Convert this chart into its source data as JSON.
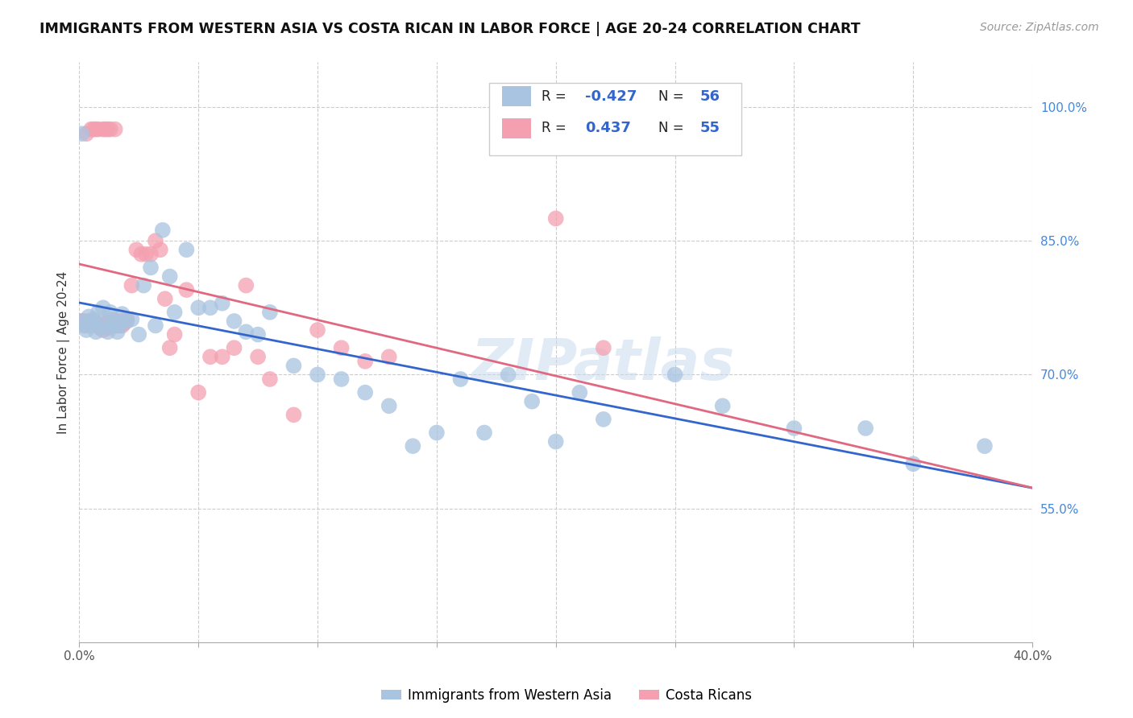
{
  "title": "IMMIGRANTS FROM WESTERN ASIA VS COSTA RICAN IN LABOR FORCE | AGE 20-24 CORRELATION CHART",
  "source": "Source: ZipAtlas.com",
  "ylabel": "In Labor Force | Age 20-24",
  "xlim": [
    0.0,
    0.4
  ],
  "ylim": [
    0.4,
    1.05
  ],
  "xtick_positions": [
    0.0,
    0.05,
    0.1,
    0.15,
    0.2,
    0.25,
    0.3,
    0.35,
    0.4
  ],
  "xticklabels": [
    "0.0%",
    "",
    "",
    "",
    "",
    "",
    "",
    "",
    "40.0%"
  ],
  "yticks_right": [
    0.55,
    0.7,
    0.85,
    1.0
  ],
  "yticklabels_right": [
    "55.0%",
    "70.0%",
    "85.0%",
    "100.0%"
  ],
  "blue_color": "#a8c4e0",
  "pink_color": "#f4a0b0",
  "blue_line_color": "#3366cc",
  "pink_line_color": "#e06880",
  "legend_R_blue": "-0.427",
  "legend_N_blue": "56",
  "legend_R_pink": "0.437",
  "legend_N_pink": "55",
  "watermark": "ZIPatlas",
  "blue_scatter_x": [
    0.001,
    0.002,
    0.003,
    0.004,
    0.005,
    0.006,
    0.007,
    0.008,
    0.009,
    0.01,
    0.011,
    0.012,
    0.013,
    0.014,
    0.015,
    0.016,
    0.017,
    0.018,
    0.02,
    0.022,
    0.025,
    0.027,
    0.03,
    0.032,
    0.035,
    0.038,
    0.04,
    0.045,
    0.05,
    0.055,
    0.06,
    0.065,
    0.07,
    0.075,
    0.08,
    0.09,
    0.1,
    0.11,
    0.12,
    0.13,
    0.14,
    0.15,
    0.16,
    0.17,
    0.18,
    0.19,
    0.2,
    0.21,
    0.22,
    0.25,
    0.27,
    0.3,
    0.33,
    0.35,
    0.38,
    0.001
  ],
  "blue_scatter_y": [
    0.76,
    0.755,
    0.75,
    0.765,
    0.758,
    0.762,
    0.748,
    0.77,
    0.752,
    0.775,
    0.755,
    0.748,
    0.77,
    0.762,
    0.755,
    0.748,
    0.755,
    0.768,
    0.76,
    0.762,
    0.745,
    0.8,
    0.82,
    0.755,
    0.862,
    0.81,
    0.77,
    0.84,
    0.775,
    0.775,
    0.78,
    0.76,
    0.748,
    0.745,
    0.77,
    0.71,
    0.7,
    0.695,
    0.68,
    0.665,
    0.62,
    0.635,
    0.695,
    0.635,
    0.7,
    0.67,
    0.625,
    0.68,
    0.65,
    0.7,
    0.665,
    0.64,
    0.64,
    0.6,
    0.62,
    0.97
  ],
  "pink_scatter_x": [
    0.001,
    0.002,
    0.003,
    0.004,
    0.005,
    0.006,
    0.007,
    0.008,
    0.009,
    0.01,
    0.011,
    0.012,
    0.013,
    0.014,
    0.015,
    0.016,
    0.017,
    0.018,
    0.019,
    0.02,
    0.022,
    0.024,
    0.026,
    0.028,
    0.03,
    0.032,
    0.034,
    0.036,
    0.038,
    0.04,
    0.045,
    0.05,
    0.055,
    0.06,
    0.065,
    0.07,
    0.075,
    0.08,
    0.09,
    0.1,
    0.11,
    0.12,
    0.13,
    0.003,
    0.005,
    0.006,
    0.007,
    0.008,
    0.01,
    0.011,
    0.012,
    0.013,
    0.015,
    0.2,
    0.22
  ],
  "pink_scatter_y": [
    0.76,
    0.76,
    0.755,
    0.76,
    0.755,
    0.76,
    0.758,
    0.755,
    0.752,
    0.75,
    0.758,
    0.752,
    0.76,
    0.755,
    0.76,
    0.755,
    0.76,
    0.755,
    0.758,
    0.762,
    0.8,
    0.84,
    0.835,
    0.835,
    0.835,
    0.85,
    0.84,
    0.785,
    0.73,
    0.745,
    0.795,
    0.68,
    0.72,
    0.72,
    0.73,
    0.8,
    0.72,
    0.695,
    0.655,
    0.75,
    0.73,
    0.715,
    0.72,
    0.97,
    0.975,
    0.975,
    0.975,
    0.975,
    0.975,
    0.975,
    0.975,
    0.975,
    0.975,
    0.875,
    0.73
  ]
}
